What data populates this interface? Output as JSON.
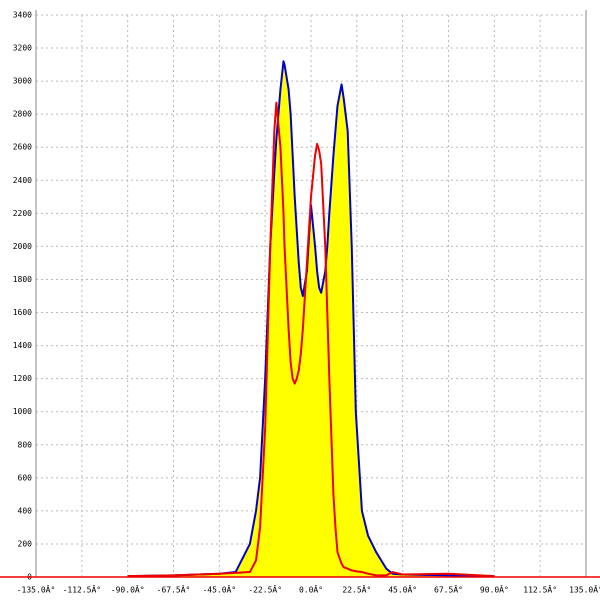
{
  "chart_data": {
    "type": "line",
    "x": [
      -90,
      -67.5,
      -45,
      -37,
      -30,
      -27,
      -25,
      -22.5,
      -20,
      -18,
      -17,
      -15,
      -13.5,
      -13,
      -11,
      -10,
      -9,
      -8,
      -7,
      -6,
      -5,
      -4,
      -2,
      0,
      2,
      3,
      4,
      5,
      7,
      8,
      9,
      11,
      12,
      13,
      15,
      16,
      18,
      20,
      22,
      25,
      28,
      32,
      37,
      40,
      45,
      67.5,
      90
    ],
    "series": [
      {
        "color": "#0000cc",
        "fill": "#ffff00",
        "values": [
          5,
          10,
          20,
          30,
          200,
          400,
          600,
          1200,
          2000,
          2450,
          2650,
          2950,
          3120,
          3100,
          2950,
          2800,
          2550,
          2300,
          2100,
          1900,
          1750,
          1700,
          1850,
          2250,
          2000,
          1850,
          1750,
          1720,
          1850,
          2000,
          2200,
          2550,
          2700,
          2850,
          2980,
          2900,
          2700,
          2000,
          1000,
          400,
          250,
          150,
          50,
          20,
          15,
          10,
          5
        ]
      },
      {
        "color": "#ee0000",
        "values": [
          5,
          10,
          20,
          25,
          30,
          100,
          300,
          900,
          2000,
          2700,
          2870,
          2600,
          2200,
          2000,
          1500,
          1300,
          1200,
          1170,
          1200,
          1250,
          1350,
          1500,
          1900,
          2300,
          2550,
          2620,
          2580,
          2500,
          2000,
          1600,
          1200,
          500,
          300,
          150,
          80,
          60,
          50,
          40,
          35,
          30,
          20,
          10,
          10,
          30,
          15,
          20,
          5
        ]
      }
    ],
    "xlim": [
      -135,
      135
    ],
    "xticks": [
      {
        "value": -135,
        "label": "-135.0Â°"
      },
      {
        "value": -112.5,
        "label": "-112.5Â°"
      },
      {
        "value": -90,
        "label": "-90.0Â°"
      },
      {
        "value": -67.5,
        "label": "-67.5Â°"
      },
      {
        "value": -45,
        "label": "-45.0Â°"
      },
      {
        "value": -22.5,
        "label": "-22.5Â°"
      },
      {
        "value": 0,
        "label": "0.0Â°"
      },
      {
        "value": 22.5,
        "label": "22.5Â°"
      },
      {
        "value": 45,
        "label": "45.0Â°"
      },
      {
        "value": 67.5,
        "label": "67.5Â°"
      },
      {
        "value": 90,
        "label": "90.0Â°"
      },
      {
        "value": 112.5,
        "label": "112.5Â°"
      },
      {
        "value": 135,
        "label": "135.0Â°"
      }
    ],
    "ylim": [
      0,
      3400
    ],
    "yticks": [
      0,
      200,
      400,
      600,
      800,
      1000,
      1200,
      1400,
      1600,
      1800,
      2000,
      2200,
      2400,
      2600,
      2800,
      3000,
      3200,
      3400
    ],
    "grid": true
  }
}
